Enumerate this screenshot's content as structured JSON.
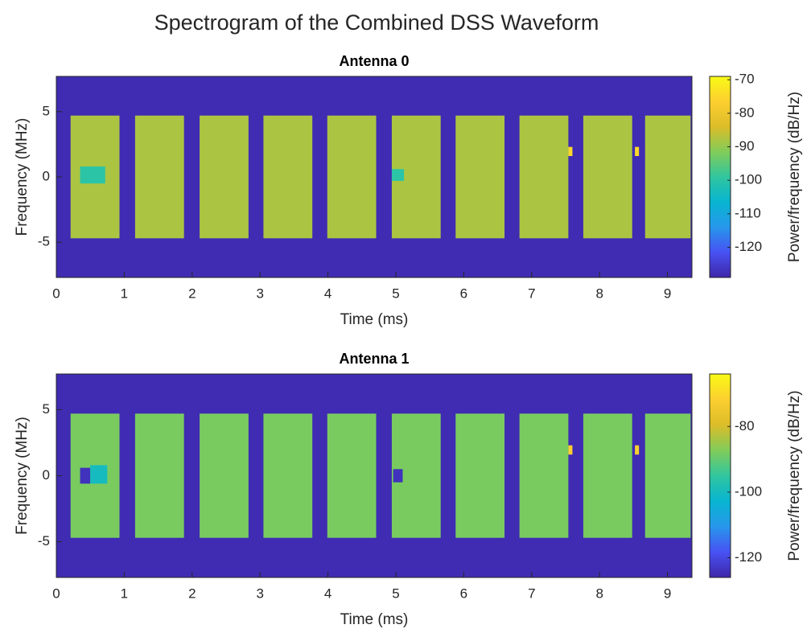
{
  "suptitle": "Spectrogram of the Combined DSS Waveform",
  "chart_data": [
    {
      "type": "spectrogram",
      "title": "Antenna 0",
      "x_label": "Time (ms)",
      "y_label": "Frequency (MHz)",
      "colorbar_label": "Power/frequency (dB/Hz)",
      "xlim": [
        0,
        9.36
      ],
      "xticks": [
        0,
        1,
        2,
        3,
        4,
        5,
        6,
        7,
        8,
        9
      ],
      "ylim": [
        -7.7,
        7.7
      ],
      "yticks": [
        -5,
        0,
        5
      ],
      "clim": [
        -129,
        -69
      ],
      "cticks": [
        -120,
        -110,
        -100,
        -90,
        -80,
        -70
      ],
      "background": -128,
      "regions": [
        {
          "time": [
            0.21,
            0.93
          ],
          "freq": [
            -4.7,
            4.7
          ],
          "value": -88
        },
        {
          "time": [
            1.16,
            1.88
          ],
          "freq": [
            -4.7,
            4.7
          ],
          "value": -88
        },
        {
          "time": [
            2.11,
            2.83
          ],
          "freq": [
            -4.7,
            4.7
          ],
          "value": -88
        },
        {
          "time": [
            3.05,
            3.77
          ],
          "freq": [
            -4.7,
            4.7
          ],
          "value": -88
        },
        {
          "time": [
            3.99,
            4.71
          ],
          "freq": [
            -4.7,
            4.7
          ],
          "value": -88
        },
        {
          "time": [
            4.94,
            5.66
          ],
          "freq": [
            -4.7,
            4.7
          ],
          "value": -88
        },
        {
          "time": [
            5.88,
            6.6
          ],
          "freq": [
            -4.7,
            4.7
          ],
          "value": -88
        },
        {
          "time": [
            6.82,
            7.54
          ],
          "freq": [
            -4.7,
            4.7
          ],
          "value": -88
        },
        {
          "time": [
            7.76,
            8.48
          ],
          "freq": [
            -4.7,
            4.7
          ],
          "value": -88
        },
        {
          "time": [
            8.67,
            9.34
          ],
          "freq": [
            -4.7,
            4.7
          ],
          "value": -88
        },
        {
          "time": [
            0.35,
            0.72
          ],
          "freq": [
            -0.5,
            0.8
          ],
          "value": -100
        },
        {
          "time": [
            4.94,
            5.12
          ],
          "freq": [
            -0.3,
            0.6
          ],
          "value": -100
        },
        {
          "time": [
            7.54,
            7.6
          ],
          "freq": [
            1.6,
            2.3
          ],
          "value": -75
        },
        {
          "time": [
            8.52,
            8.58
          ],
          "freq": [
            1.6,
            2.3
          ],
          "value": -75
        }
      ]
    },
    {
      "type": "spectrogram",
      "title": "Antenna 1",
      "x_label": "Time (ms)",
      "y_label": "Frequency (MHz)",
      "colorbar_label": "Power/frequency (dB/Hz)",
      "xlim": [
        0,
        9.36
      ],
      "xticks": [
        0,
        1,
        2,
        3,
        4,
        5,
        6,
        7,
        8,
        9
      ],
      "ylim": [
        -7.7,
        7.7
      ],
      "yticks": [
        -5,
        0,
        5
      ],
      "clim": [
        -126,
        -64
      ],
      "cticks": [
        -120,
        -100,
        -80
      ],
      "background": -125,
      "regions": [
        {
          "time": [
            0.21,
            0.93
          ],
          "freq": [
            -4.7,
            4.7
          ],
          "value": -88
        },
        {
          "time": [
            1.16,
            1.88
          ],
          "freq": [
            -4.7,
            4.7
          ],
          "value": -88
        },
        {
          "time": [
            2.11,
            2.83
          ],
          "freq": [
            -4.7,
            4.7
          ],
          "value": -88
        },
        {
          "time": [
            3.05,
            3.77
          ],
          "freq": [
            -4.7,
            4.7
          ],
          "value": -88
        },
        {
          "time": [
            3.99,
            4.71
          ],
          "freq": [
            -4.7,
            4.7
          ],
          "value": -88
        },
        {
          "time": [
            4.94,
            5.66
          ],
          "freq": [
            -4.7,
            4.7
          ],
          "value": -88
        },
        {
          "time": [
            5.88,
            6.6
          ],
          "freq": [
            -4.7,
            4.7
          ],
          "value": -88
        },
        {
          "time": [
            6.82,
            7.54
          ],
          "freq": [
            -4.7,
            4.7
          ],
          "value": -88
        },
        {
          "time": [
            7.76,
            8.48
          ],
          "freq": [
            -4.7,
            4.7
          ],
          "value": -88
        },
        {
          "time": [
            8.67,
            9.34
          ],
          "freq": [
            -4.7,
            4.7
          ],
          "value": -88
        },
        {
          "time": [
            0.35,
            0.5
          ],
          "freq": [
            -0.6,
            0.6
          ],
          "value": -124
        },
        {
          "time": [
            0.5,
            0.75
          ],
          "freq": [
            -0.6,
            0.8
          ],
          "value": -100
        },
        {
          "time": [
            4.96,
            5.1
          ],
          "freq": [
            -0.5,
            0.5
          ],
          "value": -124
        },
        {
          "time": [
            7.54,
            7.6
          ],
          "freq": [
            1.6,
            2.3
          ],
          "value": -72
        },
        {
          "time": [
            8.52,
            8.58
          ],
          "freq": [
            1.6,
            2.3
          ],
          "value": -72
        }
      ]
    }
  ]
}
